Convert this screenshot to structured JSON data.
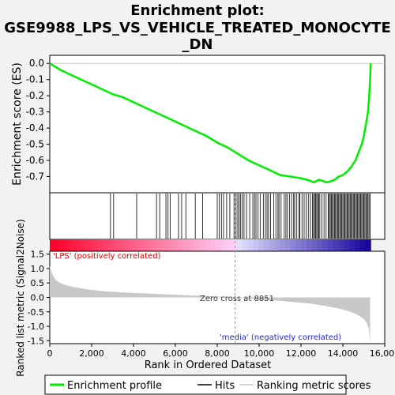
{
  "chart_data": {
    "type": "line",
    "title_lines": [
      "Enrichment plot:",
      "GSE9988_LPS_VS_VEHICLE_TREATED_MONOCYTE",
      "_DN"
    ],
    "es_panel": {
      "ylabel": "Enrichment score (ES)",
      "ylim": [
        -0.8,
        0.05
      ],
      "yticks": [
        0.0,
        -0.1,
        -0.2,
        -0.3,
        -0.4,
        -0.5,
        -0.6,
        -0.7
      ],
      "ytick_labels": [
        "0.0",
        "-0.1",
        "-0.2",
        "-0.3",
        "-0.4",
        "-0.5",
        "-0.6",
        "-0.7"
      ],
      "series": [
        {
          "name": "Enrichment profile",
          "color": "#00ee00",
          "x": [
            0,
            500,
            1000,
            1500,
            2000,
            2500,
            3000,
            3500,
            4000,
            4500,
            5000,
            5500,
            6000,
            6500,
            7000,
            7500,
            8000,
            8500,
            9000,
            9500,
            10000,
            10500,
            11000,
            11500,
            12000,
            12300,
            12600,
            12700,
            12850,
            13000,
            13200,
            13400,
            13600,
            13800,
            14000,
            14200,
            14400,
            14600,
            14750,
            14900,
            15000,
            15100,
            15200,
            15250,
            15300,
            15330
          ],
          "y": [
            0.0,
            -0.04,
            -0.07,
            -0.1,
            -0.13,
            -0.16,
            -0.19,
            -0.21,
            -0.24,
            -0.27,
            -0.3,
            -0.33,
            -0.36,
            -0.39,
            -0.42,
            -0.45,
            -0.49,
            -0.52,
            -0.56,
            -0.6,
            -0.63,
            -0.66,
            -0.69,
            -0.7,
            -0.71,
            -0.72,
            -0.735,
            -0.73,
            -0.72,
            -0.725,
            -0.735,
            -0.73,
            -0.72,
            -0.7,
            -0.69,
            -0.67,
            -0.64,
            -0.6,
            -0.55,
            -0.5,
            -0.45,
            -0.38,
            -0.3,
            -0.22,
            -0.1,
            0.0
          ]
        }
      ]
    },
    "hits": [
      2900,
      3050,
      4150,
      5100,
      5250,
      5550,
      5650,
      5750,
      6150,
      6300,
      6500,
      6950,
      7300,
      8000,
      8100,
      8200,
      8300,
      8450,
      8600,
      8800,
      8900,
      8980,
      9050,
      9120,
      9200,
      9280,
      9400,
      9550,
      9700,
      9780,
      9850,
      9950,
      10050,
      10200,
      10300,
      10380,
      10450,
      10550,
      10700,
      10800,
      10900,
      10950,
      11050,
      11200,
      11280,
      11350,
      11450,
      11550,
      11650,
      11700,
      11800,
      11900,
      11950,
      12050,
      12150,
      12250,
      12350,
      12450,
      12550,
      12600,
      12650,
      12700,
      12750,
      12800,
      12850,
      12900,
      13000,
      13100,
      13200,
      13300,
      13350,
      13400,
      13450,
      13500,
      13550,
      13600,
      13650,
      13700,
      13750,
      13800,
      13850,
      13900,
      13950,
      14000,
      14050,
      14100,
      14150,
      14200,
      14250,
      14300,
      14350,
      14400,
      14450,
      14500,
      14550,
      14600,
      14650,
      14700,
      14750,
      14800,
      14850,
      14900,
      14950,
      15000,
      15050,
      15100,
      15150,
      15200,
      15250,
      15300
    ],
    "metric_panel": {
      "ylabel": "Ranked list metric (Signal2Noise)",
      "ylim": [
        -1.6,
        1.6
      ],
      "yticks": [
        1.5,
        1.0,
        0.5,
        0.0,
        -0.5,
        -1.0,
        -1.5
      ],
      "ytick_labels": [
        "1.5",
        "1.0",
        "0.5",
        "0.0",
        "-0.5",
        "-1.0",
        "-1.5"
      ],
      "x": [
        0,
        50,
        150,
        300,
        500,
        800,
        1200,
        1800,
        2500,
        3500,
        4500,
        5500,
        6500,
        7500,
        8500,
        8851,
        9500,
        10500,
        11500,
        12500,
        13200,
        13800,
        14300,
        14700,
        15000,
        15150,
        15250,
        15300
      ],
      "y": [
        1.1,
        0.95,
        0.75,
        0.6,
        0.5,
        0.42,
        0.35,
        0.28,
        0.22,
        0.17,
        0.14,
        0.11,
        0.08,
        0.05,
        0.02,
        0.0,
        -0.04,
        -0.09,
        -0.15,
        -0.22,
        -0.3,
        -0.38,
        -0.48,
        -0.6,
        -0.75,
        -0.9,
        -1.1,
        -1.55
      ],
      "zero_cross_label": "Zero cross at 8851",
      "zero_cross_x": 8851,
      "pos_label": "'LPS' (positively correlated)",
      "neg_label": "'media' (negatively correlated)"
    },
    "x_axis": {
      "xlabel": "Rank in Ordered Dataset",
      "xlim": [
        0,
        16000
      ],
      "xticks": [
        0,
        2000,
        4000,
        6000,
        8000,
        10000,
        12000,
        14000,
        16000
      ],
      "xtick_labels": [
        "0",
        "2,000",
        "4,000",
        "6,000",
        "8,000",
        "10,000",
        "12,000",
        "14,000",
        "16,000"
      ],
      "n_genes": 15330
    },
    "legend": {
      "placement": "bottom",
      "items": [
        {
          "label": "Enrichment profile",
          "color": "#00ee00"
        },
        {
          "label": "Hits",
          "color": "#000000"
        },
        {
          "label": "Ranking metric scores",
          "color": "#c8c8c8"
        }
      ]
    }
  }
}
